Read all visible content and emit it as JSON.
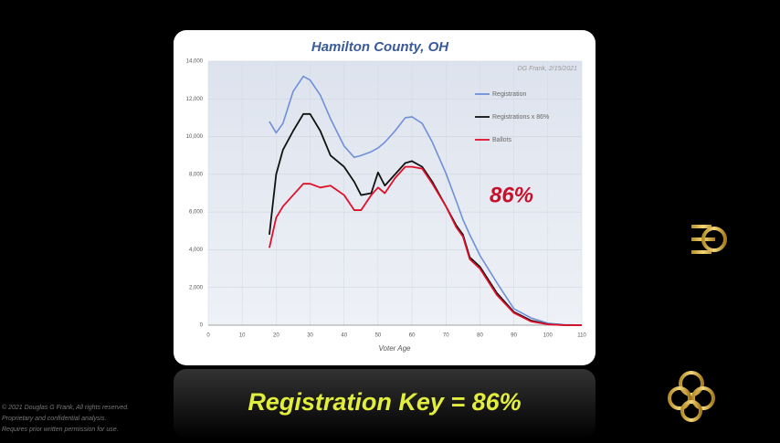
{
  "chart_data": {
    "type": "line",
    "title": "Hamilton County, OH",
    "annotation": "DG Frank, 2/15/2021",
    "highlight": "86%",
    "xlabel": "Voter Age",
    "x": [
      18,
      20,
      22,
      25,
      28,
      30,
      33,
      36,
      40,
      43,
      45,
      48,
      50,
      52,
      55,
      58,
      60,
      63,
      66,
      70,
      73,
      75,
      77,
      80,
      85,
      90,
      95,
      100,
      105,
      110
    ],
    "series": [
      {
        "name": "Registration",
        "color": "#6f8fd8",
        "values": [
          10800,
          10200,
          10700,
          12400,
          13200,
          13000,
          12200,
          10950,
          9500,
          8900,
          9000,
          9200,
          9400,
          9700,
          10300,
          11000,
          11050,
          10700,
          9700,
          8050,
          6600,
          5600,
          4800,
          3700,
          2250,
          870,
          390,
          100,
          20,
          0
        ]
      },
      {
        "name": "Registrations x 86%",
        "color": "#111111",
        "values": [
          4800,
          8000,
          9300,
          10300,
          11200,
          11200,
          10300,
          9000,
          8400,
          7600,
          6900,
          7000,
          8100,
          7400,
          8000,
          8600,
          8700,
          8400,
          7600,
          6300,
          5300,
          4800,
          3600,
          3100,
          1700,
          700,
          250,
          50,
          0,
          0
        ]
      },
      {
        "name": "Ballots",
        "color": "#e0102a",
        "values": [
          4100,
          5700,
          6300,
          6900,
          7500,
          7500,
          7300,
          7400,
          6900,
          6100,
          6100,
          6900,
          7300,
          7000,
          7800,
          8400,
          8400,
          8300,
          7500,
          6300,
          5200,
          4700,
          3500,
          3000,
          1600,
          650,
          200,
          40,
          0,
          0
        ]
      }
    ],
    "xlim": [
      0,
      110
    ],
    "xticks": [
      0,
      10,
      20,
      30,
      40,
      50,
      60,
      70,
      80,
      90,
      100,
      110
    ],
    "ylim": [
      0,
      14000
    ],
    "yticks": [
      0,
      {
        "value": 2000,
        "label": "2,000"
      },
      {
        "value": 4000,
        "label": "4,000"
      },
      {
        "value": 6000,
        "label": "6,000"
      },
      {
        "value": 8000,
        "label": "8,000"
      },
      {
        "value": 10000,
        "label": "10,000"
      },
      {
        "value": 12000,
        "label": "12,000"
      },
      {
        "value": 14000,
        "label": "14,000"
      }
    ],
    "grid": true,
    "legend": "upper right"
  },
  "caption": "Registration Key = 86%",
  "copyright": [
    "© 2021 Douglas G Frank, All rights reserved.",
    "Proprietary and confidential analysis.",
    "Requires prior written permission for use."
  ]
}
